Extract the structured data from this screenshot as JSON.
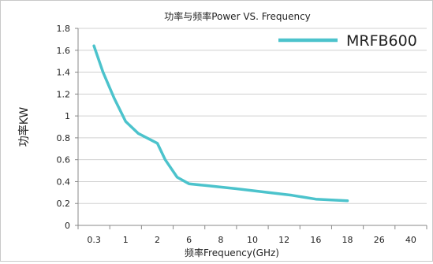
{
  "chart_data": {
    "type": "line",
    "title": "功率与频率Power VS. Frequency",
    "xlabel": "频率Frequency(GHz)",
    "ylabel": "功率KW",
    "categories": [
      "0.3",
      "1",
      "2",
      "6",
      "8",
      "10",
      "12",
      "16",
      "18",
      "26",
      "40"
    ],
    "ylim": [
      0,
      1.8
    ],
    "yticks": [
      "0",
      "0.2",
      "0.4",
      "0.6",
      "0.8",
      "1",
      "1.2",
      "1.4",
      "1.6",
      "1.8"
    ],
    "grid": true,
    "legend_position": "top-right",
    "series": [
      {
        "name": "MRFB600",
        "color": "#4cc3cc",
        "points": [
          {
            "x": 0.3,
            "y": 1.64
          },
          {
            "x": 0.5,
            "y": 1.4
          },
          {
            "x": 0.75,
            "y": 1.16
          },
          {
            "x": 1.0,
            "y": 0.95
          },
          {
            "x": 1.4,
            "y": 0.84
          },
          {
            "x": 2.0,
            "y": 0.75
          },
          {
            "x": 3.0,
            "y": 0.6
          },
          {
            "x": 4.5,
            "y": 0.44
          },
          {
            "x": 6.0,
            "y": 0.38
          },
          {
            "x": 7.0,
            "y": 0.365
          },
          {
            "x": 9.0,
            "y": 0.335
          },
          {
            "x": 11.0,
            "y": 0.3
          },
          {
            "x": 13.0,
            "y": 0.275
          },
          {
            "x": 16.0,
            "y": 0.24
          },
          {
            "x": 18.0,
            "y": 0.225
          }
        ]
      }
    ]
  }
}
